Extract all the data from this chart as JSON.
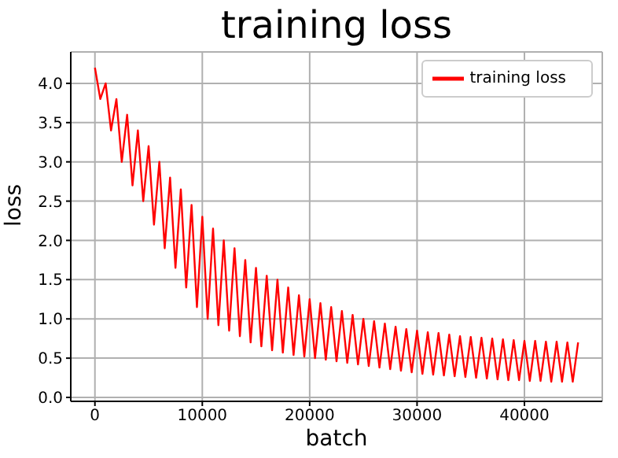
{
  "chart_data": {
    "type": "line",
    "title": "training loss",
    "xlabel": "batch",
    "ylabel": "loss",
    "x": [
      0,
      500,
      1000,
      1500,
      2000,
      2500,
      3000,
      3500,
      4000,
      4500,
      5000,
      5500,
      6000,
      6500,
      7000,
      7500,
      8000,
      8500,
      9000,
      9500,
      10000,
      10500,
      11000,
      11500,
      12000,
      12500,
      13000,
      13500,
      14000,
      14500,
      15000,
      15500,
      16000,
      16500,
      17000,
      17500,
      18000,
      18500,
      19000,
      19500,
      20000,
      20500,
      21000,
      21500,
      22000,
      22500,
      23000,
      23500,
      24000,
      24500,
      25000,
      25500,
      26000,
      26500,
      27000,
      27500,
      28000,
      28500,
      29000,
      29500,
      30000,
      30500,
      31000,
      31500,
      32000,
      32500,
      33000,
      33500,
      34000,
      34500,
      35000,
      35500,
      36000,
      36500,
      37000,
      37500,
      38000,
      38500,
      39000,
      39500,
      40000,
      40500,
      41000,
      41500,
      42000,
      42500,
      43000,
      43500,
      44000,
      44500,
      45000
    ],
    "series": [
      {
        "name": "training loss",
        "color": "#ff0000",
        "values": [
          4.2,
          3.8,
          4.0,
          3.4,
          3.8,
          3.0,
          3.6,
          2.7,
          3.4,
          2.5,
          3.2,
          2.2,
          3.0,
          1.9,
          2.8,
          1.65,
          2.65,
          1.4,
          2.45,
          1.15,
          2.3,
          1.0,
          2.15,
          0.92,
          2.0,
          0.85,
          1.9,
          0.78,
          1.75,
          0.7,
          1.65,
          0.65,
          1.55,
          0.6,
          1.5,
          0.57,
          1.4,
          0.54,
          1.3,
          0.52,
          1.25,
          0.5,
          1.2,
          0.48,
          1.15,
          0.46,
          1.1,
          0.44,
          1.05,
          0.42,
          1.0,
          0.4,
          0.97,
          0.38,
          0.94,
          0.36,
          0.9,
          0.34,
          0.87,
          0.32,
          0.85,
          0.3,
          0.83,
          0.29,
          0.82,
          0.28,
          0.8,
          0.27,
          0.78,
          0.26,
          0.77,
          0.25,
          0.76,
          0.24,
          0.75,
          0.23,
          0.74,
          0.22,
          0.73,
          0.22,
          0.72,
          0.21,
          0.72,
          0.21,
          0.71,
          0.2,
          0.71,
          0.2,
          0.7,
          0.2,
          0.7
        ]
      }
    ],
    "xlim": [
      -2250,
      47250
    ],
    "xticks": [
      0,
      10000,
      20000,
      30000,
      40000
    ],
    "ylim": [
      -0.05,
      4.4
    ],
    "yticks": [
      {
        "value": 0,
        "label": "0.0"
      },
      0.5,
      {
        "value": 1,
        "label": "1.0"
      },
      1.5,
      {
        "value": 2,
        "label": "2.0"
      },
      2.5,
      {
        "value": 3,
        "label": "3.0"
      },
      3.5,
      {
        "value": 4,
        "label": "4.0"
      }
    ],
    "grid": true,
    "legend": "top right",
    "marker": "none",
    "line_style": "solid"
  }
}
